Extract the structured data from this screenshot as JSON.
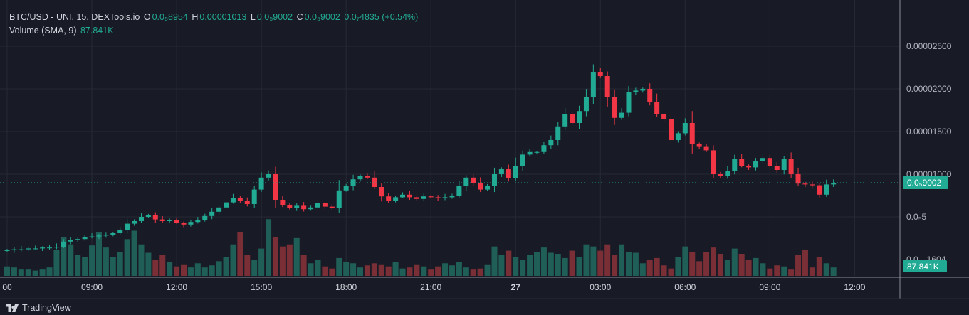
{
  "legend": {
    "symbol": "BTC/USD - UNI, 15, DEXTools.io",
    "open_label": "O",
    "open": "0.0₅8954",
    "high_label": "H",
    "high": "0.00001013",
    "low_label": "L",
    "low": "0.0₅9002",
    "close_label": "C",
    "close": "0.0₅9002",
    "change": "0.0₇4835 (+0.54%)",
    "volume_label": "Volume (SMA, 9)",
    "volume_value": "87.841K"
  },
  "colors": {
    "up": "#22ab94",
    "down": "#f23645",
    "up_volume": "#1f5f57",
    "down_volume": "#7a2e36",
    "background": "#181b25",
    "grid": "#262a35"
  },
  "brand": "TradingView",
  "chart_data": {
    "type": "candlestick",
    "interval": "15",
    "price_unit": "1e-6",
    "y_ticks": [
      {
        "value": 25,
        "label": "0.00002500"
      },
      {
        "value": 20,
        "label": "0.00002000"
      },
      {
        "value": 15,
        "label": "0.00001500"
      },
      {
        "value": 10,
        "label": "0.00001000"
      },
      {
        "value": 5,
        "label": "0.0₅5"
      }
    ],
    "volume_axis_label": "0.0…1604",
    "ylim": [
      0,
      28
    ],
    "x_ticks": [
      {
        "index": 0,
        "label": "00"
      },
      {
        "index": 12,
        "label": "09:00"
      },
      {
        "index": 24,
        "label": "12:00"
      },
      {
        "index": 36,
        "label": "15:00"
      },
      {
        "index": 48,
        "label": "18:00"
      },
      {
        "index": 60,
        "label": "21:00"
      },
      {
        "index": 72,
        "label": "27"
      },
      {
        "index": 84,
        "label": "03:00"
      },
      {
        "index": 96,
        "label": "06:00"
      },
      {
        "index": 108,
        "label": "09:00"
      },
      {
        "index": 120,
        "label": "12:00"
      }
    ],
    "first_open": 1.0,
    "closes": [
      1.1,
      1.2,
      1.2,
      1.3,
      1.3,
      1.4,
      1.4,
      1.5,
      2.1,
      2.3,
      2.4,
      2.6,
      2.7,
      2.8,
      2.9,
      3.1,
      3.5,
      4.2,
      4.5,
      5.0,
      5.2,
      4.7,
      4.5,
      4.6,
      4.3,
      4.1,
      4.4,
      4.6,
      5.1,
      5.6,
      6.1,
      6.7,
      7.2,
      6.9,
      6.5,
      8.2,
      9.6,
      10.0,
      7.0,
      6.4,
      6.0,
      6.3,
      5.9,
      6.1,
      6.6,
      6.2,
      6.0,
      8.1,
      8.6,
      9.4,
      9.8,
      9.6,
      8.5,
      7.4,
      6.9,
      7.3,
      7.6,
      7.3,
      7.1,
      7.4,
      7.3,
      7.2,
      7.3,
      7.5,
      8.6,
      9.6,
      9.0,
      8.2,
      8.6,
      10.0,
      10.6,
      9.5,
      11.0,
      12.3,
      12.6,
      12.6,
      13.4,
      14.0,
      15.6,
      17.0,
      16.0,
      17.4,
      19.0,
      22.0,
      21.5,
      19.0,
      16.6,
      17.2,
      19.6,
      19.8,
      20.0,
      18.5,
      17.0,
      16.5,
      14.0,
      14.8,
      16.0,
      13.5,
      13.2,
      12.8,
      10.0,
      9.8,
      10.4,
      11.8,
      11.0,
      10.8,
      11.5,
      11.9,
      11.0,
      10.5,
      11.8,
      10.0,
      8.9,
      8.8,
      8.7,
      7.6,
      8.8,
      9.0
    ],
    "volumes_k": [
      90,
      80,
      60,
      60,
      50,
      60,
      80,
      250,
      370,
      300,
      200,
      180,
      290,
      420,
      270,
      180,
      230,
      350,
      430,
      300,
      220,
      150,
      200,
      130,
      90,
      110,
      80,
      120,
      80,
      100,
      140,
      180,
      300,
      420,
      200,
      150,
      260,
      540,
      370,
      280,
      300,
      360,
      200,
      120,
      150,
      90,
      70,
      170,
      130,
      120,
      80,
      100,
      120,
      110,
      90,
      130,
      70,
      80,
      110,
      90,
      60,
      90,
      120,
      100,
      130,
      80,
      60,
      70,
      110,
      280,
      200,
      240,
      180,
      150,
      200,
      230,
      270,
      220,
      210,
      170,
      240,
      180,
      300,
      280,
      240,
      300,
      200,
      300,
      230,
      220,
      120,
      150,
      170,
      100,
      70,
      180,
      280,
      230,
      140,
      230,
      270,
      210,
      150,
      260,
      210,
      150,
      170,
      120,
      70,
      100,
      90,
      60,
      200,
      250,
      80,
      180,
      120,
      80
    ],
    "last_price_label": "0.0₅9002",
    "last_volume_label": "87.841K"
  }
}
